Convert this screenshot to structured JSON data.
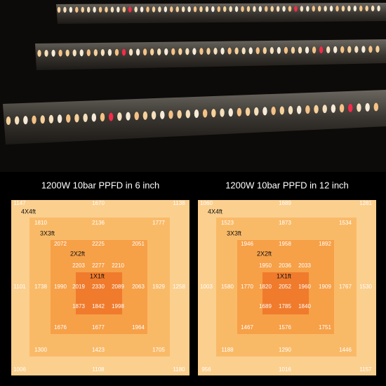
{
  "maps": [
    {
      "title": "1200W 10bar PPFD in 6 inch",
      "zones": [
        "4X4ft",
        "3X3ft",
        "2X2ft",
        "1X1ft"
      ],
      "rows": [
        [
          1147,
          1670,
          1138
        ],
        [
          1810,
          2136,
          1777
        ],
        [
          2072,
          2225,
          2051
        ],
        [
          2203,
          2277,
          2210
        ],
        [
          1101,
          1738,
          1990,
          2019,
          2330,
          2089,
          2063,
          1929,
          1258
        ],
        [
          1873,
          1842,
          1998
        ],
        [
          1676,
          1677,
          1964
        ],
        [
          1300,
          1423,
          1705
        ],
        [
          1006,
          1108,
          1180
        ]
      ]
    },
    {
      "title": "1200W 10bar PPFD in 12 inch",
      "zones": [
        "4X4ft",
        "3X3ft",
        "2X2ft",
        "1X1ft"
      ],
      "rows": [
        [
          1060,
          1689,
          1281
        ],
        [
          1523,
          1873,
          1534
        ],
        [
          1946,
          1958,
          1892
        ],
        [
          1950,
          2036,
          2033
        ],
        [
          1003,
          1580,
          1770,
          1820,
          2052,
          1960,
          1909,
          1767,
          1530
        ],
        [
          1689,
          1785,
          1840
        ],
        [
          1467,
          1576,
          1751
        ],
        [
          1188,
          1290,
          1446
        ],
        [
          956,
          1016,
          1157
        ]
      ]
    }
  ]
}
